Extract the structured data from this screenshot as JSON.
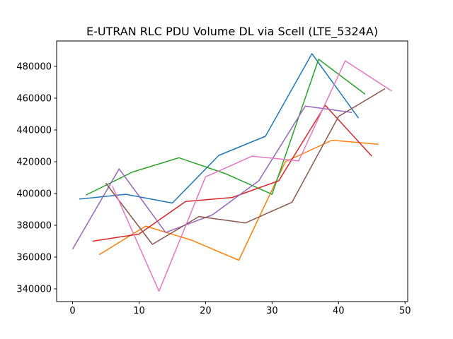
{
  "chart_data": {
    "type": "line",
    "title": "E-UTRAN RLC PDU Volume DL via Scell (LTE_5324A)",
    "xlabel": "",
    "ylabel": "",
    "xlim": [
      -2.4,
      50.4
    ],
    "ylim": [
      332000,
      496000
    ],
    "xticks": [
      0,
      10,
      20,
      30,
      40,
      50
    ],
    "yticks": [
      340000,
      360000,
      380000,
      400000,
      420000,
      440000,
      460000,
      480000
    ],
    "grid": false,
    "legend": "none",
    "series": [
      {
        "color": "#1f77b4",
        "x": [
          1,
          8,
          15,
          22,
          29,
          36,
          43
        ],
        "y": [
          396500,
          399500,
          394000,
          424000,
          436000,
          488000,
          447500
        ]
      },
      {
        "color": "#ff7f0e",
        "x": [
          4,
          11,
          18,
          25,
          32,
          39,
          46
        ],
        "y": [
          361500,
          379500,
          370500,
          358000,
          420000,
          433500,
          431000
        ]
      },
      {
        "color": "#2ca02c",
        "x": [
          2,
          9,
          16,
          23,
          30,
          37,
          44
        ],
        "y": [
          399000,
          413500,
          422500,
          412500,
          399500,
          484500,
          462500
        ]
      },
      {
        "color": "#d62728",
        "x": [
          3,
          10,
          17,
          24,
          31,
          38,
          45
        ],
        "y": [
          370000,
          374500,
          395000,
          397500,
          408000,
          455500,
          423500
        ]
      },
      {
        "color": "#9467bd",
        "x": [
          0,
          7,
          14,
          21,
          28,
          35,
          42
        ],
        "y": [
          365000,
          415500,
          375500,
          386500,
          408000,
          455000,
          451000
        ]
      },
      {
        "color": "#8c564b",
        "x": [
          5,
          12,
          19,
          26,
          33,
          40,
          47
        ],
        "y": [
          406500,
          368000,
          385500,
          381500,
          394500,
          448500,
          466000
        ]
      },
      {
        "color": "#e377c2",
        "x": [
          6,
          13,
          20,
          27,
          34,
          41,
          48
        ],
        "y": [
          404500,
          338500,
          410500,
          423500,
          420500,
          483500,
          464500
        ]
      }
    ]
  }
}
